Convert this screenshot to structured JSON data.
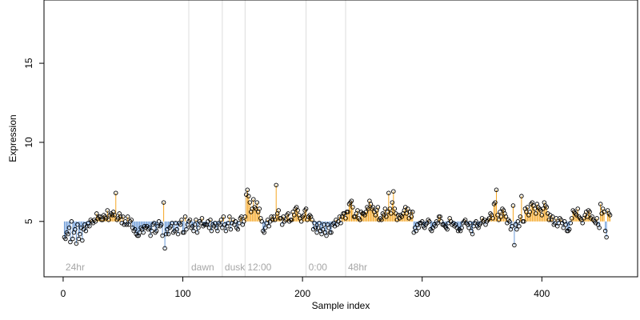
{
  "chart_data": {
    "type": "scatter",
    "title": "",
    "xlabel": "Sample index",
    "ylabel": "Expression",
    "xlim": [
      -16,
      480
    ],
    "ylim": [
      1.5,
      19
    ],
    "xticks": [
      "0",
      "100",
      "200",
      "300",
      "400"
    ],
    "xtick_values": [
      0,
      100,
      200,
      300,
      400
    ],
    "yticks": [
      "5",
      "10",
      "15"
    ],
    "ytick_values": [
      5,
      10,
      15
    ],
    "baseline": 5.0,
    "colors": {
      "above": "#f5a623",
      "below": "#6a9ad8",
      "point_edge": "#000000",
      "separator": "#dcdcdc",
      "annotation": "#a6a6a6"
    },
    "grid": false,
    "legend": "none",
    "separators": [
      {
        "x": 0,
        "label": "24hr"
      },
      {
        "x": 105,
        "label": "dawn"
      },
      {
        "x": 133,
        "label": "dusk"
      },
      {
        "x": 152,
        "label": "12:00"
      },
      {
        "x": 203,
        "label": "0:00"
      },
      {
        "x": 236,
        "label": "48hr"
      }
    ],
    "points": {
      "x_start": 1,
      "y": [
        4.0,
        3.9,
        4.3,
        4.2,
        4.6,
        3.7,
        5.0,
        3.9,
        4.3,
        4.5,
        3.6,
        4.8,
        3.9,
        4.2,
        4.6,
        3.8,
        4.5,
        4.8,
        4.4,
        4.7,
        4.9,
        4.7,
        5.1,
        5.0,
        4.9,
        5.1,
        5.0,
        5.5,
        5.2,
        5.3,
        5.3,
        5.1,
        5.1,
        5.4,
        5.3,
        5.2,
        5.7,
        5.1,
        5.4,
        5.5,
        5.4,
        5.6,
        5.4,
        6.8,
        5.1,
        5.2,
        5.5,
        5.3,
        4.9,
        5.3,
        4.8,
        5.0,
        4.8,
        5.3,
        4.8,
        5.0,
        5.1,
        4.6,
        4.4,
        4.5,
        4.2,
        4.1,
        4.1,
        4.3,
        4.6,
        4.5,
        4.3,
        4.7,
        4.6,
        4.7,
        4.5,
        4.6,
        4.1,
        4.4,
        4.8,
        4.9,
        4.3,
        4.4,
        4.7,
        5.0,
        4.7,
        4.8,
        4.1,
        6.2,
        3.3,
        4.2,
        4.5,
        4.2,
        4.6,
        4.7,
        4.9,
        4.3,
        4.4,
        4.9,
        4.5,
        4.2,
        4.9,
        4.8,
        5.1,
        4.3,
        4.3,
        5.3,
        4.5,
        4.8,
        5.0,
        5.1,
        4.6,
        4.7,
        4.4,
        4.8,
        5.1,
        4.3,
        4.6,
        5.0,
        4.9,
        5.2,
        4.7,
        4.8,
        4.8,
        4.8,
        5.0,
        4.6,
        5.1,
        4.4,
        4.8,
        4.7,
        4.9,
        4.6,
        4.4,
        4.9,
        4.8,
        5.1,
        4.6,
        5.3,
        4.8,
        4.4,
        4.7,
        4.9,
        5.3,
        4.5,
        4.9,
        5.1,
        4.8,
        5.0,
        4.6,
        4.5,
        4.9,
        5.2,
        5.3,
        4.8,
        5.0,
        5.3,
        6.7,
        7.0,
        6.6,
        6.2,
        5.6,
        5.8,
        6.4,
        5.9,
        5.8,
        6.2,
        5.6,
        5.8,
        5.2,
        5.0,
        4.4,
        4.3,
        4.6,
        4.9,
        5.1,
        4.7,
        5.0,
        5.3,
        5.1,
        5.3,
        5.1,
        7.3,
        5.5,
        5.7,
        5.2,
        5.2,
        4.8,
        5.3,
        5.0,
        5.1,
        5.4,
        5.5,
        5.0,
        5.1,
        5.1,
        5.6,
        5.4,
        5.8,
        5.9,
        5.7,
        5.4,
        5.2,
        5.0,
        5.3,
        5.4,
        5.7,
        5.8,
        5.1,
        5.3,
        5.4,
        5.3,
        5.1,
        4.5,
        4.9,
        4.6,
        4.3,
        4.6,
        4.9,
        4.4,
        4.2,
        4.5,
        4.8,
        4.3,
        4.1,
        4.8,
        4.6,
        4.3,
        4.3,
        4.8,
        4.9,
        4.7,
        5.1,
        4.8,
        5.0,
        5.3,
        4.9,
        5.3,
        5.5,
        5.5,
        5.2,
        5.6,
        5.6,
        6.1,
        6.2,
        6.3,
        5.9,
        5.3,
        5.3,
        5.5,
        5.7,
        5.2,
        5.1,
        5.6,
        5.5,
        5.5,
        5.4,
        5.6,
        5.9,
        5.8,
        6.3,
        6.1,
        5.8,
        5.9,
        5.6,
        5.4,
        5.7,
        5.9,
        5.1,
        5.2,
        5.1,
        5.5,
        5.4,
        5.8,
        5.3,
        5.6,
        6.8,
        5.8,
        5.5,
        6.2,
        6.9,
        5.8,
        5.5,
        5.1,
        5.4,
        5.2,
        5.4,
        5.3,
        5.5,
        5.7,
        5.9,
        5.5,
        5.8,
        5.2,
        5.6,
        5.3,
        5.6,
        4.3,
        4.6,
        4.4,
        4.8,
        4.6,
        4.9,
        4.9,
        5.0,
        4.7,
        4.6,
        4.8,
        4.9,
        5.1,
        5.0,
        4.5,
        4.4,
        4.6,
        4.8,
        4.7,
        5.0,
        4.9,
        5.3,
        5.3,
        5.0,
        4.8,
        4.8,
        4.7,
        4.6,
        4.5,
        4.9,
        5.2,
        5.0,
        4.8,
        4.9,
        4.7,
        4.8,
        4.6,
        4.4,
        4.5,
        4.4,
        4.6,
        4.9,
        5.0,
        5.1,
        4.9,
        4.8,
        4.6,
        4.9,
        4.4,
        4.2,
        4.7,
        4.9,
        5.0,
        4.7,
        4.6,
        4.8,
        4.9,
        5.2,
        5.0,
        5.1,
        4.8,
        5.0,
        5.1,
        5.2,
        5.5,
        5.4,
        5.2,
        6.1,
        6.2,
        7.0,
        5.4,
        5.1,
        5.6,
        5.3,
        5.8,
        5.7,
        5.5,
        5.3,
        4.9,
        5.1,
        5.0,
        4.5,
        4.7,
        6.0,
        3.5,
        4.8,
        4.5,
        5.0,
        4.7,
        5.3,
        6.6,
        5.0,
        5.0,
        5.8,
        5.6,
        5.9,
        5.4,
        5.6,
        6.1,
        6.2,
        6.0,
        5.8,
        5.5,
        6.1,
        5.9,
        5.8,
        5.7,
        5.4,
        5.8,
        6.2,
        6.0,
        5.9,
        5.5,
        5.1,
        5.4,
        5.1,
        5.3,
        4.8,
        4.9,
        5.2,
        4.7,
        4.9,
        5.2,
        5.1,
        4.9,
        4.6,
        5.0,
        4.8,
        4.4,
        4.4,
        4.5,
        4.9,
        5.2,
        5.7,
        5.6,
        5.5,
        5.4,
        5.8,
        5.3,
        5.2,
        5.1,
        4.9,
        5.2,
        5.4,
        5.6,
        5.3,
        5.7,
        5.6,
        5.2,
        5.3,
        5.1,
        5.0,
        4.9,
        5.2,
        4.8,
        4.6,
        6.1,
        5.5,
        5.8,
        5.6,
        4.4,
        4.0,
        5.7,
        5.5,
        5.4
      ]
    }
  }
}
